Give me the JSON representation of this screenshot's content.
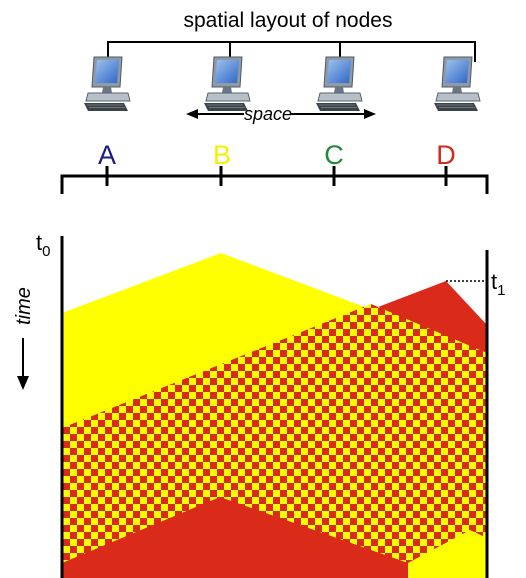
{
  "header": {
    "title": "spatial layout of nodes",
    "space_label": "space"
  },
  "nodes": [
    {
      "label": "A",
      "color": "#1a1a80"
    },
    {
      "label": "B",
      "color": "#f5f000"
    },
    {
      "label": "C",
      "color": "#1f8a3a"
    },
    {
      "label": "D",
      "color": "#d42a1c"
    }
  ],
  "time_axis": {
    "label": "time",
    "t0": "t",
    "t0_sub": "0",
    "t1": "t",
    "t1_sub": "1"
  },
  "signals": {
    "node_b_color": "#ffff00",
    "node_d_color": "#da2a1a",
    "collision_pattern": "yellow-red checkerboard"
  },
  "icons": {
    "computer": "desktop-computer-icon"
  }
}
